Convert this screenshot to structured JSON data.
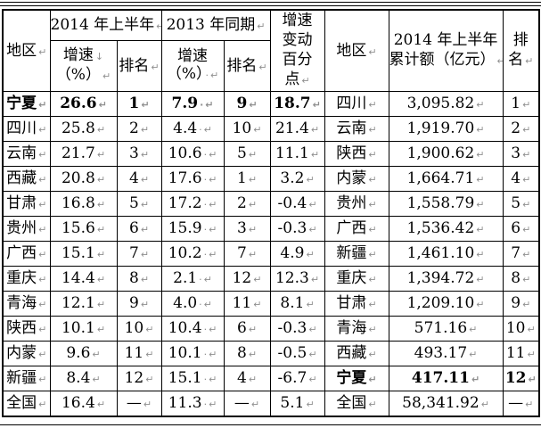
{
  "marks": {
    "para": "↵",
    "space": "·",
    "line_break": "↓"
  },
  "header": {
    "region": "地区",
    "group_2014": "2014 年上半年",
    "group_2013": "2013 年同期",
    "growth_line1": "增速",
    "growth_line2": "（%）",
    "rank": "排名",
    "change_line1": "增速",
    "change_line2": "变动",
    "change_line3": "百分",
    "change_line4": "点",
    "region_right": "地区",
    "amount_line1": "2014 年上半年",
    "amount_line2": "累计额（亿元）",
    "rank_right_line1": "排",
    "rank_right_line2": "名"
  },
  "rows": [
    {
      "region": "宁夏",
      "g2014": "26.6",
      "r2014": "1",
      "g2013": "7.9",
      "r2013": "9",
      "change": "18.7",
      "region2": "四川",
      "amount": "3,095.82",
      "rank2": "1",
      "bold_left": true,
      "bold_right": false
    },
    {
      "region": "四川",
      "g2014": "25.8",
      "r2014": "2",
      "g2013": "4.4",
      "r2013": "10",
      "change": "21.4",
      "region2": "云南",
      "amount": "1,919.70",
      "rank2": "2",
      "bold_left": false,
      "bold_right": false
    },
    {
      "region": "云南",
      "g2014": "21.7",
      "r2014": "3",
      "g2013": "10.6",
      "r2013": "5",
      "change": "11.1",
      "region2": "陕西",
      "amount": "1,900.62",
      "rank2": "3",
      "bold_left": false,
      "bold_right": false
    },
    {
      "region": "西藏",
      "g2014": "20.8",
      "r2014": "4",
      "g2013": "17.6",
      "r2013": "1",
      "change": "3.2",
      "region2": "内蒙",
      "amount": "1,664.71",
      "rank2": "4",
      "bold_left": false,
      "bold_right": false
    },
    {
      "region": "甘肃",
      "g2014": "16.8",
      "r2014": "5",
      "g2013": "17.2",
      "r2013": "2",
      "change": "-0.4",
      "region2": "贵州",
      "amount": "1,558.79",
      "rank2": "5",
      "bold_left": false,
      "bold_right": false
    },
    {
      "region": "贵州",
      "g2014": "15.6",
      "r2014": "6",
      "g2013": "15.9",
      "r2013": "3",
      "change": "-0.3",
      "region2": "广西",
      "amount": "1,536.42",
      "rank2": "6",
      "bold_left": false,
      "bold_right": false
    },
    {
      "region": "广西",
      "g2014": "15.1",
      "r2014": "7",
      "g2013": "10.2",
      "r2013": "7",
      "change": "4.9",
      "region2": "新疆",
      "amount": "1,461.10",
      "rank2": "7",
      "bold_left": false,
      "bold_right": false
    },
    {
      "region": "重庆",
      "g2014": "14.4",
      "r2014": "8",
      "g2013": "2.1",
      "r2013": "12",
      "change": "12.3",
      "region2": "重庆",
      "amount": "1,394.72",
      "rank2": "8",
      "bold_left": false,
      "bold_right": false
    },
    {
      "region": "青海",
      "g2014": "12.1",
      "r2014": "9",
      "g2013": "4.0",
      "r2013": "11",
      "change": "8.1",
      "region2": "甘肃",
      "amount": "1,209.10",
      "rank2": "9",
      "bold_left": false,
      "bold_right": false
    },
    {
      "region": "陕西",
      "g2014": "10.1",
      "r2014": "10",
      "g2013": "10.4",
      "r2013": "6",
      "change": "-0.3",
      "region2": "青海",
      "amount": "571.16",
      "rank2": "10",
      "bold_left": false,
      "bold_right": false
    },
    {
      "region": "内蒙",
      "g2014": "9.6",
      "r2014": "11",
      "g2013": "10.1",
      "r2013": "8",
      "change": "-0.5",
      "region2": "西藏",
      "amount": "493.17",
      "rank2": "11",
      "bold_left": false,
      "bold_right": false
    },
    {
      "region": "新疆",
      "g2014": "8.4",
      "r2014": "12",
      "g2013": "15.1",
      "r2013": "4",
      "change": "-6.7",
      "region2": "宁夏",
      "amount": "417.11",
      "rank2": "12",
      "bold_left": false,
      "bold_right": true
    },
    {
      "region": "全国",
      "g2014": "16.4",
      "r2014": "—",
      "g2013": "11.3",
      "r2013": "—",
      "change": "5.1",
      "region2": "全国",
      "amount": "58,341.92",
      "rank2": "—",
      "bold_left": false,
      "bold_right": false
    }
  ]
}
